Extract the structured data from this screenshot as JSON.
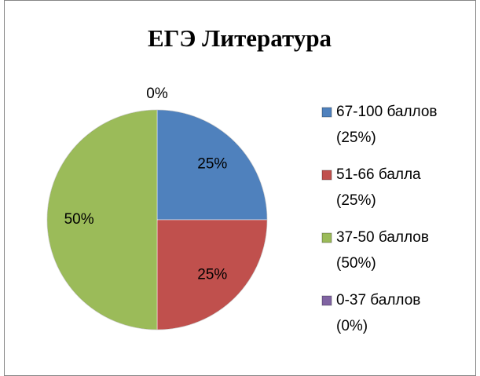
{
  "chart_data": {
    "type": "pie",
    "title": "ЕГЭ Литература",
    "categories": [
      "67-100 баллов (25%)",
      "51-66 балла (25%)",
      "37-50 баллов (50%)",
      "0-37 баллов (0%)"
    ],
    "values": [
      25,
      25,
      50,
      0
    ],
    "value_labels": [
      "25%",
      "25%",
      "50%",
      "0%"
    ],
    "colors": [
      "#4f81bd",
      "#c0504d",
      "#9bbb59",
      "#8064a2"
    ],
    "legend": "right"
  }
}
